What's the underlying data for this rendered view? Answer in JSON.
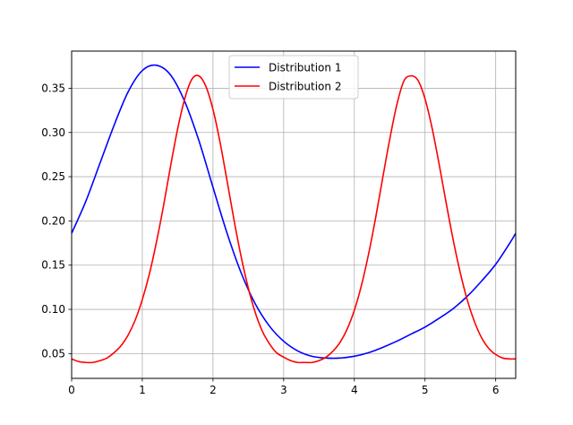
{
  "chart_data": {
    "type": "line",
    "title": "",
    "xlabel": "",
    "ylabel": "",
    "xlim": [
      0,
      6.283
    ],
    "ylim": [
      0.022,
      0.392
    ],
    "xticks": [
      0,
      1,
      2,
      3,
      4,
      5,
      6
    ],
    "yticks": [
      0.05,
      0.1,
      0.15,
      0.2,
      0.25,
      0.3,
      0.35
    ],
    "ytick_labels": [
      "0.05",
      "0.10",
      "0.15",
      "0.20",
      "0.25",
      "0.30",
      "0.35"
    ],
    "xtick_labels": [
      "0",
      "1",
      "2",
      "3",
      "4",
      "5",
      "6"
    ],
    "grid": true,
    "legend_position": "top-center",
    "series": [
      {
        "name": "Distribution 1",
        "color": "#0000ff",
        "x": [
          0,
          0.2,
          0.4,
          0.6,
          0.8,
          1.0,
          1.2,
          1.4,
          1.6,
          1.8,
          2.0,
          2.2,
          2.4,
          2.6,
          2.8,
          3.0,
          3.2,
          3.4,
          3.6,
          3.8,
          4.0,
          4.2,
          4.4,
          4.6,
          4.8,
          5.0,
          5.2,
          5.4,
          5.6,
          5.8,
          6.0,
          6.2,
          6.283
        ],
        "y": [
          0.186,
          0.222,
          0.265,
          0.308,
          0.346,
          0.37,
          0.376,
          0.365,
          0.335,
          0.291,
          0.238,
          0.186,
          0.141,
          0.106,
          0.081,
          0.064,
          0.053,
          0.047,
          0.045,
          0.045,
          0.047,
          0.051,
          0.057,
          0.064,
          0.072,
          0.08,
          0.09,
          0.101,
          0.115,
          0.132,
          0.151,
          0.175,
          0.186
        ]
      },
      {
        "name": "Distribution 2",
        "color": "#ff0000",
        "x": [
          0,
          0.1,
          0.2,
          0.3,
          0.4,
          0.5,
          0.6,
          0.7,
          0.8,
          0.9,
          1.0,
          1.1,
          1.2,
          1.3,
          1.4,
          1.5,
          1.6,
          1.7,
          1.8,
          1.9,
          2.0,
          2.1,
          2.2,
          2.3,
          2.4,
          2.5,
          2.6,
          2.7,
          2.8,
          2.9,
          3.0,
          3.1,
          3.2,
          3.3,
          3.4,
          3.5,
          3.6,
          3.7,
          3.8,
          3.9,
          4.0,
          4.1,
          4.2,
          4.3,
          4.4,
          4.5,
          4.6,
          4.7,
          4.8,
          4.9,
          5.0,
          5.1,
          5.2,
          5.3,
          5.4,
          5.5,
          5.6,
          5.7,
          5.8,
          5.9,
          6.0,
          6.1,
          6.2,
          6.283
        ],
        "y": [
          0.044,
          0.041,
          0.04,
          0.04,
          0.042,
          0.045,
          0.051,
          0.059,
          0.071,
          0.088,
          0.111,
          0.14,
          0.176,
          0.217,
          0.262,
          0.304,
          0.338,
          0.36,
          0.364,
          0.352,
          0.326,
          0.289,
          0.245,
          0.2,
          0.159,
          0.124,
          0.096,
          0.075,
          0.061,
          0.051,
          0.046,
          0.042,
          0.04,
          0.04,
          0.04,
          0.042,
          0.046,
          0.053,
          0.063,
          0.078,
          0.099,
          0.127,
          0.162,
          0.203,
          0.248,
          0.292,
          0.331,
          0.358,
          0.364,
          0.359,
          0.338,
          0.305,
          0.264,
          0.22,
          0.178,
          0.141,
          0.11,
          0.086,
          0.068,
          0.056,
          0.049,
          0.045,
          0.044,
          0.044
        ]
      }
    ]
  }
}
